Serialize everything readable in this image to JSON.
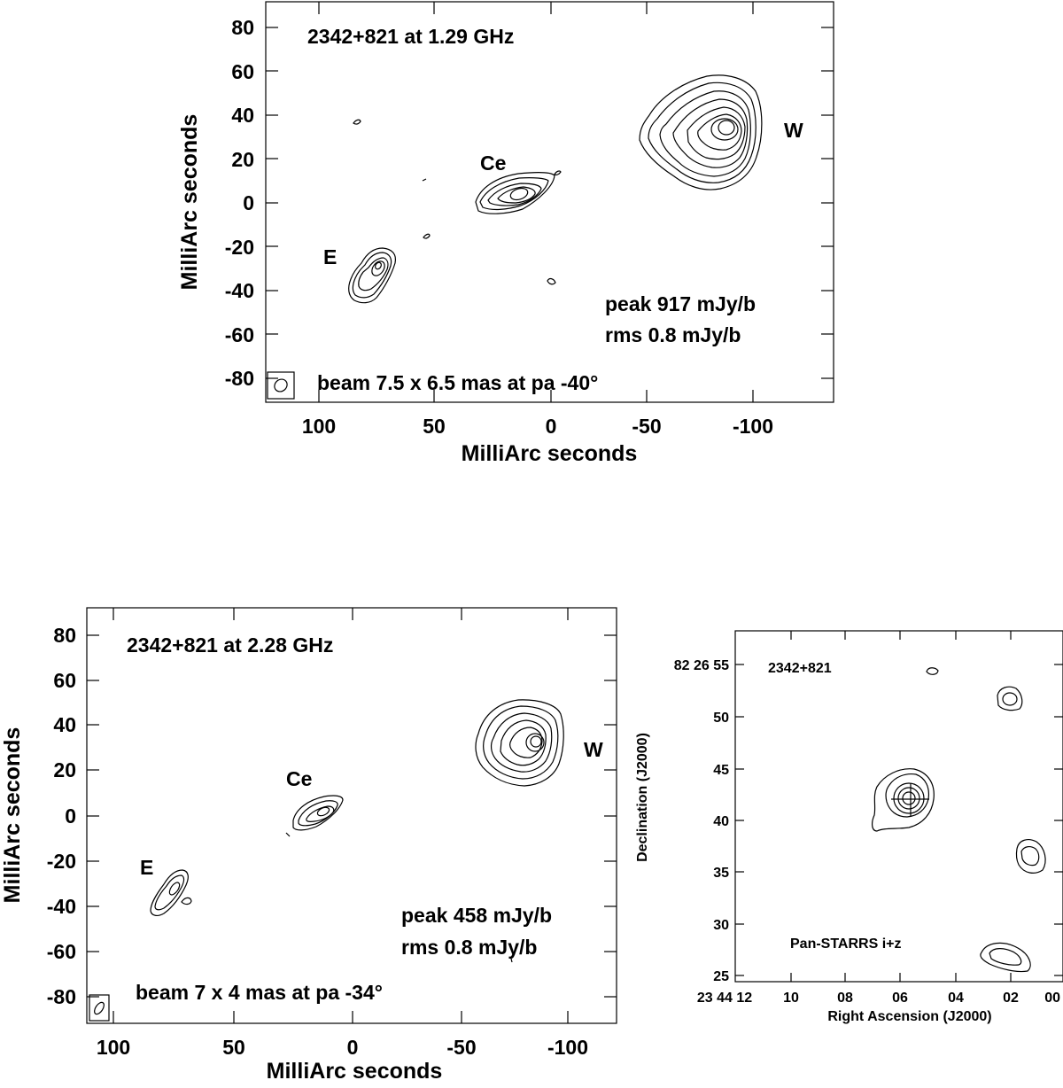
{
  "chart_data": [
    {
      "type": "contour",
      "title": "2342+821  at 1.29 GHz",
      "xlabel": "MilliArc seconds",
      "ylabel": "MilliArc seconds",
      "xlim": [
        124,
        -133
      ],
      "ylim": [
        -90,
        91
      ],
      "x_ticks": [
        100,
        50,
        0,
        -50,
        -100
      ],
      "y_ticks": [
        80,
        60,
        40,
        20,
        0,
        -20,
        -40,
        -60,
        -80
      ],
      "components": [
        {
          "label": "W",
          "x": -85,
          "y": 33
        },
        {
          "label": "Ce",
          "x": 15,
          "y": 3
        },
        {
          "label": "E",
          "x": 77,
          "y": -29
        }
      ],
      "annotations": [
        "peak 917 mJy/b",
        "rms 0.8 mJy/b",
        "beam 7.5 x 6.5 mas at pa -40°"
      ],
      "beam": {
        "major_mas": 7.5,
        "minor_mas": 6.5,
        "pa_deg": -40
      }
    },
    {
      "type": "contour",
      "title": "2342+821  at 2.28 GHz",
      "xlabel": "MilliArc seconds",
      "ylabel": "MilliArc seconds",
      "xlim": [
        111,
        -124
      ],
      "ylim": [
        -92,
        92
      ],
      "x_ticks": [
        100,
        50,
        0,
        -50,
        -100
      ],
      "y_ticks": [
        80,
        60,
        40,
        20,
        0,
        -20,
        -40,
        -60,
        -80
      ],
      "components": [
        {
          "label": "W",
          "x": -83,
          "y": 32
        },
        {
          "label": "Ce",
          "x": 15,
          "y": 3
        },
        {
          "label": "E",
          "x": 75,
          "y": -32
        }
      ],
      "annotations": [
        "peak 458 mJy/b",
        "rms 0.8 mJy/b",
        "beam 7 x 4 mas at pa -34°"
      ],
      "beam": {
        "major_mas": 7,
        "minor_mas": 4,
        "pa_deg": -34
      }
    },
    {
      "type": "contour",
      "title": "2342+821",
      "xlabel": "Right Ascension (J2000)",
      "ylabel": "Declination (J2000)",
      "x_ticks": [
        "23 44 12",
        "10",
        "08",
        "06",
        "04",
        "02",
        "00"
      ],
      "y_ticks": [
        "82 26 55",
        "50",
        "45",
        "40",
        "35",
        "30",
        "25"
      ],
      "annotations": [
        "Pan-STARRS i+z"
      ]
    }
  ]
}
